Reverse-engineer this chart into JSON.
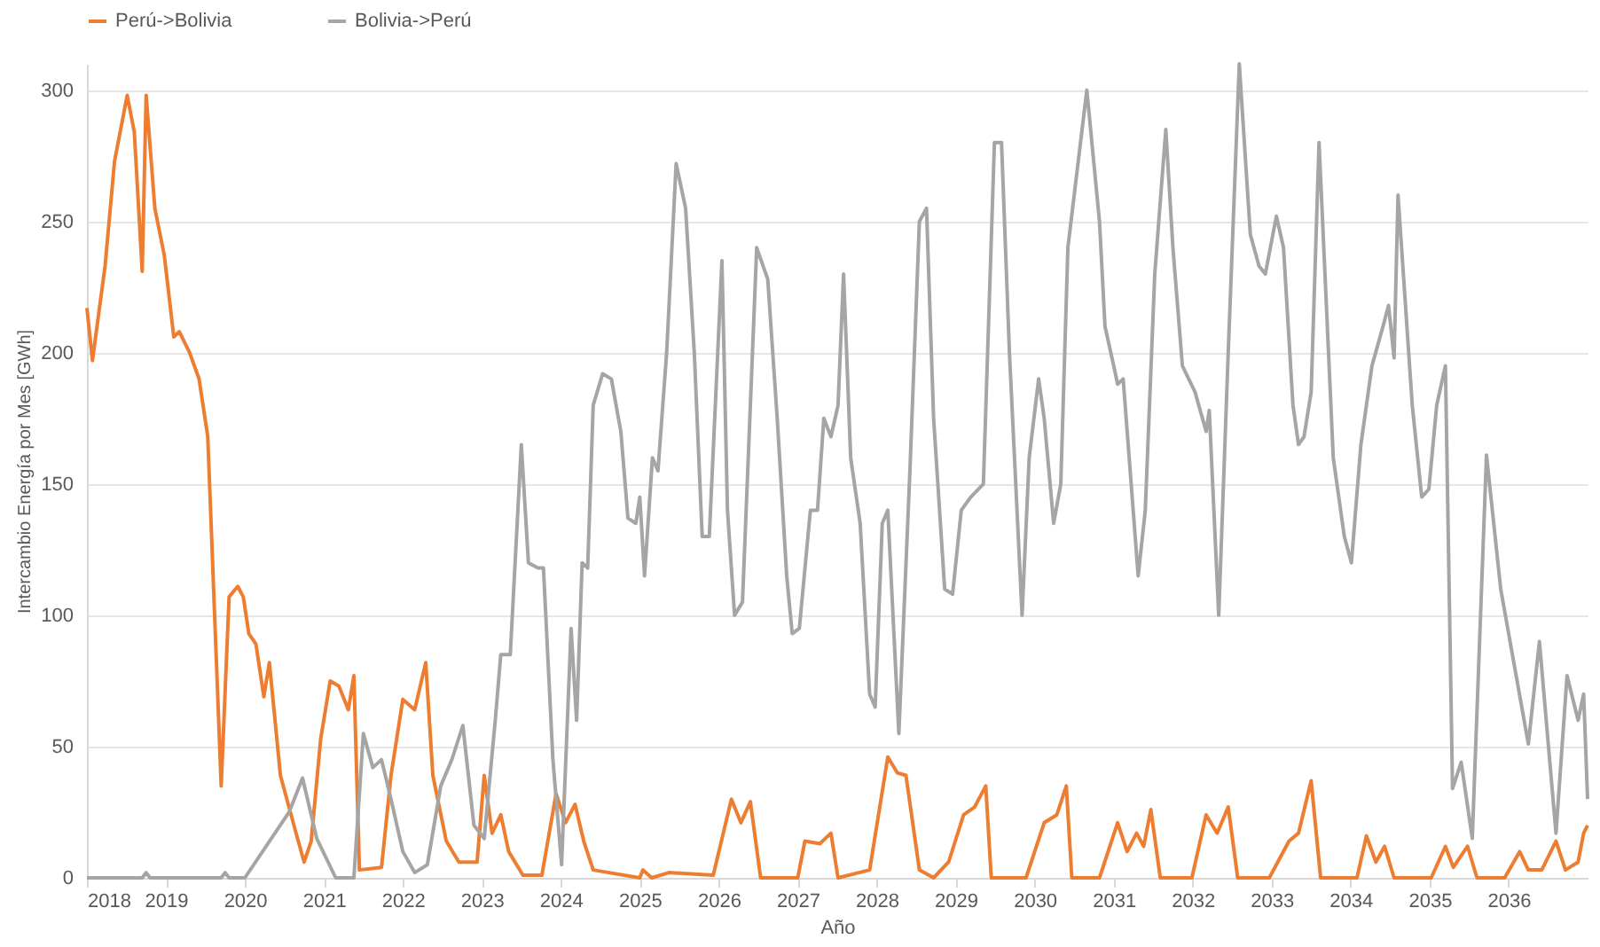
{
  "chart_data": {
    "type": "line",
    "xlabel": "Año",
    "ylabel": "Intercambio Energía por Mes [GWh]",
    "xlim": [
      2018,
      2037
    ],
    "xticks": [
      2018,
      2019,
      2020,
      2021,
      2022,
      2023,
      2024,
      2025,
      2026,
      2027,
      2028,
      2029,
      2030,
      2031,
      2032,
      2033,
      2034,
      2035,
      2036
    ],
    "ylim": [
      0,
      310
    ],
    "yticks": [
      0,
      50,
      100,
      150,
      200,
      250,
      300
    ],
    "grid": "y",
    "legend": "top",
    "marker": "none",
    "line_style": "solid",
    "series": [
      {
        "name": "Perú->Bolivia",
        "color": "#ed7d31",
        "x": [
          2018.0,
          2018.07,
          2018.23,
          2018.35,
          2018.51,
          2018.6,
          2018.7,
          2018.75,
          2018.86,
          2018.98,
          2019.1,
          2019.17,
          2019.3,
          2019.42,
          2019.53,
          2019.7,
          2019.8,
          2019.91,
          2019.98,
          2020.05,
          2020.14,
          2020.24,
          2020.31,
          2020.45,
          2020.63,
          2020.75,
          2020.84,
          2020.96,
          2021.08,
          2021.19,
          2021.31,
          2021.38,
          2021.45,
          2021.73,
          2021.85,
          2022.0,
          2022.15,
          2022.29,
          2022.38,
          2022.55,
          2022.71,
          2022.94,
          2023.03,
          2023.13,
          2023.24,
          2023.34,
          2023.52,
          2023.76,
          2023.94,
          2024.06,
          2024.18,
          2024.29,
          2024.41,
          2025.0,
          2025.04,
          2025.15,
          2025.37,
          2025.93,
          2026.16,
          2026.28,
          2026.4,
          2026.53,
          2027.0,
          2027.09,
          2027.28,
          2027.42,
          2027.51,
          2027.91,
          2028.14,
          2028.26,
          2028.37,
          2028.54,
          2028.72,
          2028.91,
          2029.1,
          2029.24,
          2029.38,
          2029.45,
          2029.89,
          2030.12,
          2030.28,
          2030.4,
          2030.47,
          2030.82,
          2031.05,
          2031.17,
          2031.29,
          2031.38,
          2031.47,
          2031.59,
          2031.99,
          2032.17,
          2032.31,
          2032.45,
          2032.57,
          2032.97,
          2033.22,
          2033.34,
          2033.5,
          2033.62,
          2034.08,
          2034.2,
          2034.32,
          2034.43,
          2034.55,
          2035.02,
          2035.2,
          2035.3,
          2035.48,
          2035.6,
          2035.95,
          2036.14,
          2036.25,
          2036.42,
          2036.6,
          2036.72,
          2036.88,
          2036.95,
          2037.0
        ],
        "values": [
          217,
          197,
          233,
          273,
          298,
          284,
          231,
          298,
          255,
          237,
          206,
          208,
          200,
          190,
          168,
          35,
          107,
          111,
          107,
          93,
          89,
          69,
          82,
          39,
          19,
          6,
          14,
          53,
          75,
          73,
          64,
          77,
          3,
          4,
          39,
          68,
          64,
          82,
          39,
          14,
          6,
          6,
          39,
          17,
          24,
          10,
          1,
          1,
          32,
          21,
          28,
          14,
          3,
          0,
          3,
          0,
          2,
          1,
          30,
          21,
          29,
          0,
          0,
          14,
          13,
          17,
          0,
          3,
          46,
          40,
          39,
          3,
          0,
          6,
          24,
          27,
          35,
          0,
          0,
          21,
          24,
          35,
          0,
          0,
          21,
          10,
          17,
          12,
          26,
          0,
          0,
          24,
          17,
          27,
          0,
          0,
          14,
          17,
          37,
          0,
          0,
          16,
          6,
          12,
          0,
          0,
          12,
          4,
          12,
          0,
          0,
          10,
          3,
          3,
          14,
          3,
          6,
          17,
          20
        ]
      },
      {
        "name": "Bolivia->Perú",
        "color": "#a5a5a5",
        "x": [
          2018.0,
          2018.7,
          2018.75,
          2018.8,
          2019.7,
          2019.75,
          2019.8,
          2020.0,
          2020.56,
          2020.73,
          2020.91,
          2021.15,
          2021.38,
          2021.5,
          2021.62,
          2021.73,
          2021.85,
          2022.0,
          2022.15,
          2022.31,
          2022.48,
          2022.62,
          2022.76,
          2022.9,
          2023.03,
          2023.17,
          2023.24,
          2023.36,
          2023.5,
          2023.59,
          2023.71,
          2023.78,
          2023.9,
          2024.01,
          2024.13,
          2024.2,
          2024.27,
          2024.34,
          2024.41,
          2024.53,
          2024.64,
          2024.76,
          2024.85,
          2024.95,
          2025.0,
          2025.06,
          2025.16,
          2025.23,
          2025.34,
          2025.46,
          2025.58,
          2025.69,
          2025.79,
          2025.88,
          2026.04,
          2026.11,
          2026.2,
          2026.3,
          2026.48,
          2026.62,
          2026.74,
          2026.86,
          2026.93,
          2027.02,
          2027.16,
          2027.25,
          2027.33,
          2027.42,
          2027.51,
          2027.58,
          2027.67,
          2027.79,
          2027.91,
          2027.98,
          2028.07,
          2028.14,
          2028.28,
          2028.42,
          2028.54,
          2028.63,
          2028.72,
          2028.86,
          2028.96,
          2029.07,
          2029.19,
          2029.35,
          2029.49,
          2029.58,
          2029.68,
          2029.84,
          2029.93,
          2030.05,
          2030.12,
          2030.24,
          2030.33,
          2030.42,
          2030.66,
          2030.82,
          2030.89,
          2031.0,
          2031.05,
          2031.12,
          2031.31,
          2031.4,
          2031.52,
          2031.66,
          2031.75,
          2031.87,
          2032.03,
          2032.17,
          2032.21,
          2032.33,
          2032.45,
          2032.59,
          2032.73,
          2032.84,
          2032.92,
          2033.06,
          2033.15,
          2033.27,
          2033.34,
          2033.41,
          2033.5,
          2033.6,
          2033.66,
          2033.78,
          2033.92,
          2034.01,
          2034.13,
          2034.27,
          2034.41,
          2034.48,
          2034.55,
          2034.6,
          2034.69,
          2034.78,
          2034.9,
          2034.99,
          2035.09,
          2035.2,
          2035.29,
          2035.4,
          2035.54,
          2035.72,
          2035.9,
          2036.25,
          2036.39,
          2036.6,
          2036.74,
          2036.88,
          2036.95,
          2037.0
        ],
        "values": [
          0,
          0,
          2,
          0,
          0,
          2,
          0,
          0,
          25,
          38,
          15,
          0,
          0,
          55,
          42,
          45,
          30,
          10,
          2,
          5,
          35,
          45,
          58,
          20,
          15,
          60,
          85,
          85,
          165,
          120,
          118,
          118,
          45,
          5,
          95,
          60,
          120,
          118,
          180,
          192,
          190,
          170,
          137,
          135,
          145,
          115,
          160,
          155,
          200,
          272,
          255,
          200,
          130,
          130,
          235,
          140,
          100,
          105,
          240,
          228,
          175,
          115,
          93,
          95,
          140,
          140,
          175,
          168,
          180,
          230,
          160,
          135,
          70,
          65,
          135,
          140,
          55,
          155,
          250,
          255,
          175,
          110,
          108,
          140,
          145,
          150,
          280,
          280,
          200,
          100,
          160,
          190,
          175,
          135,
          150,
          240,
          300,
          250,
          210,
          195,
          188,
          190,
          115,
          140,
          230,
          285,
          240,
          195,
          185,
          170,
          178,
          100,
          200,
          310,
          245,
          233,
          230,
          252,
          240,
          180,
          165,
          168,
          185,
          280,
          240,
          160,
          130,
          120,
          165,
          195,
          210,
          218,
          198,
          260,
          220,
          180,
          145,
          148,
          180,
          195,
          34,
          44,
          15,
          161,
          110,
          51,
          90,
          17,
          77,
          60,
          70,
          30
        ]
      }
    ]
  }
}
